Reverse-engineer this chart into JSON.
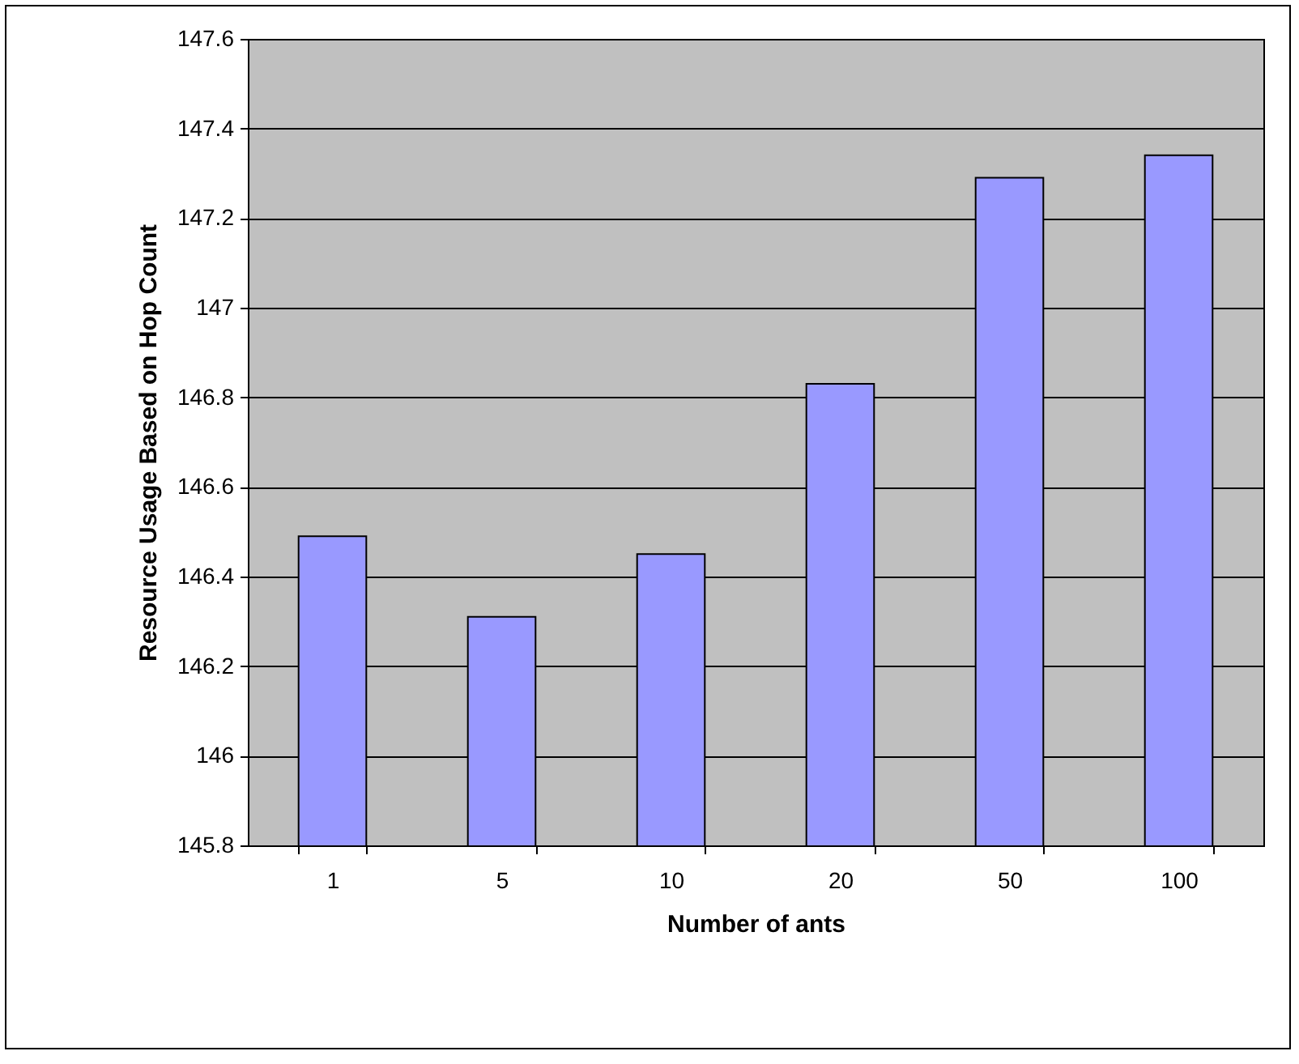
{
  "chart_data": {
    "type": "bar",
    "xlabel": "Number of ants",
    "ylabel": "Resource Usage Based on Hop Count",
    "categories": [
      "1",
      "5",
      "10",
      "20",
      "50",
      "100"
    ],
    "values": [
      146.49,
      146.31,
      146.45,
      146.83,
      147.29,
      147.34
    ],
    "color": "#9999ff",
    "ylim": [
      145.8,
      147.6
    ],
    "yticks": [
      145.8,
      146,
      146.2,
      146.4,
      146.6,
      146.8,
      147,
      147.2,
      147.4,
      147.6
    ],
    "grid": "y"
  }
}
